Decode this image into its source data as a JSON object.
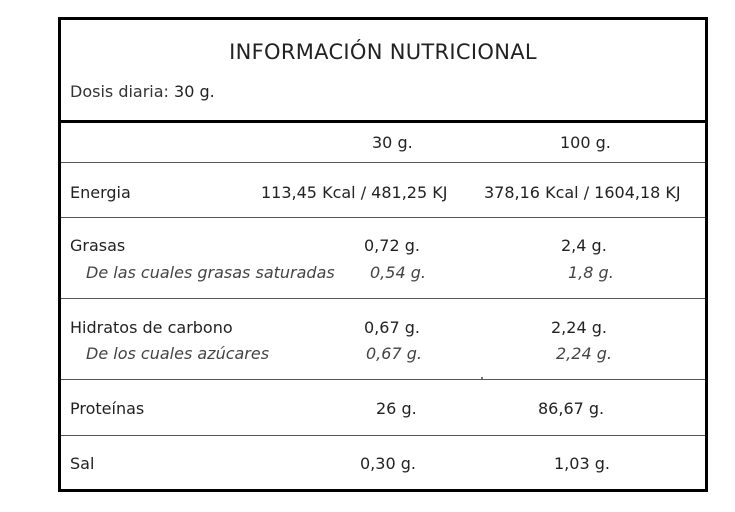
{
  "label": {
    "title": "INFORMACIÓN NUTRICIONAL",
    "dose_label": "Dosis diaria:",
    "dose_value": "30 g.",
    "columns": [
      "30 g.",
      "100 g."
    ],
    "rows": [
      {
        "name": "Energia",
        "v30": "113,45 Kcal / 481,25 KJ",
        "v100": "378,16 Kcal / 1604,18 KJ"
      },
      {
        "name": "Grasas",
        "v30": "0,72 g.",
        "v100": "2,4 g.",
        "sub_name": "De las cuales grasas saturadas",
        "sub_v30": "0,54 g.",
        "sub_v100": "1,8 g."
      },
      {
        "name": "Hidratos de carbono",
        "v30": "0,67 g.",
        "v100": "2,24 g.",
        "sub_name": "De los cuales azúcares",
        "sub_v30": "0,67 g.",
        "sub_v100": "2,24 g."
      },
      {
        "name": "Proteínas",
        "v30": "26 g.",
        "v100": "86,67 g."
      },
      {
        "name": "Sal",
        "v30": "0,30 g.",
        "v100": "1,03 g."
      }
    ]
  }
}
